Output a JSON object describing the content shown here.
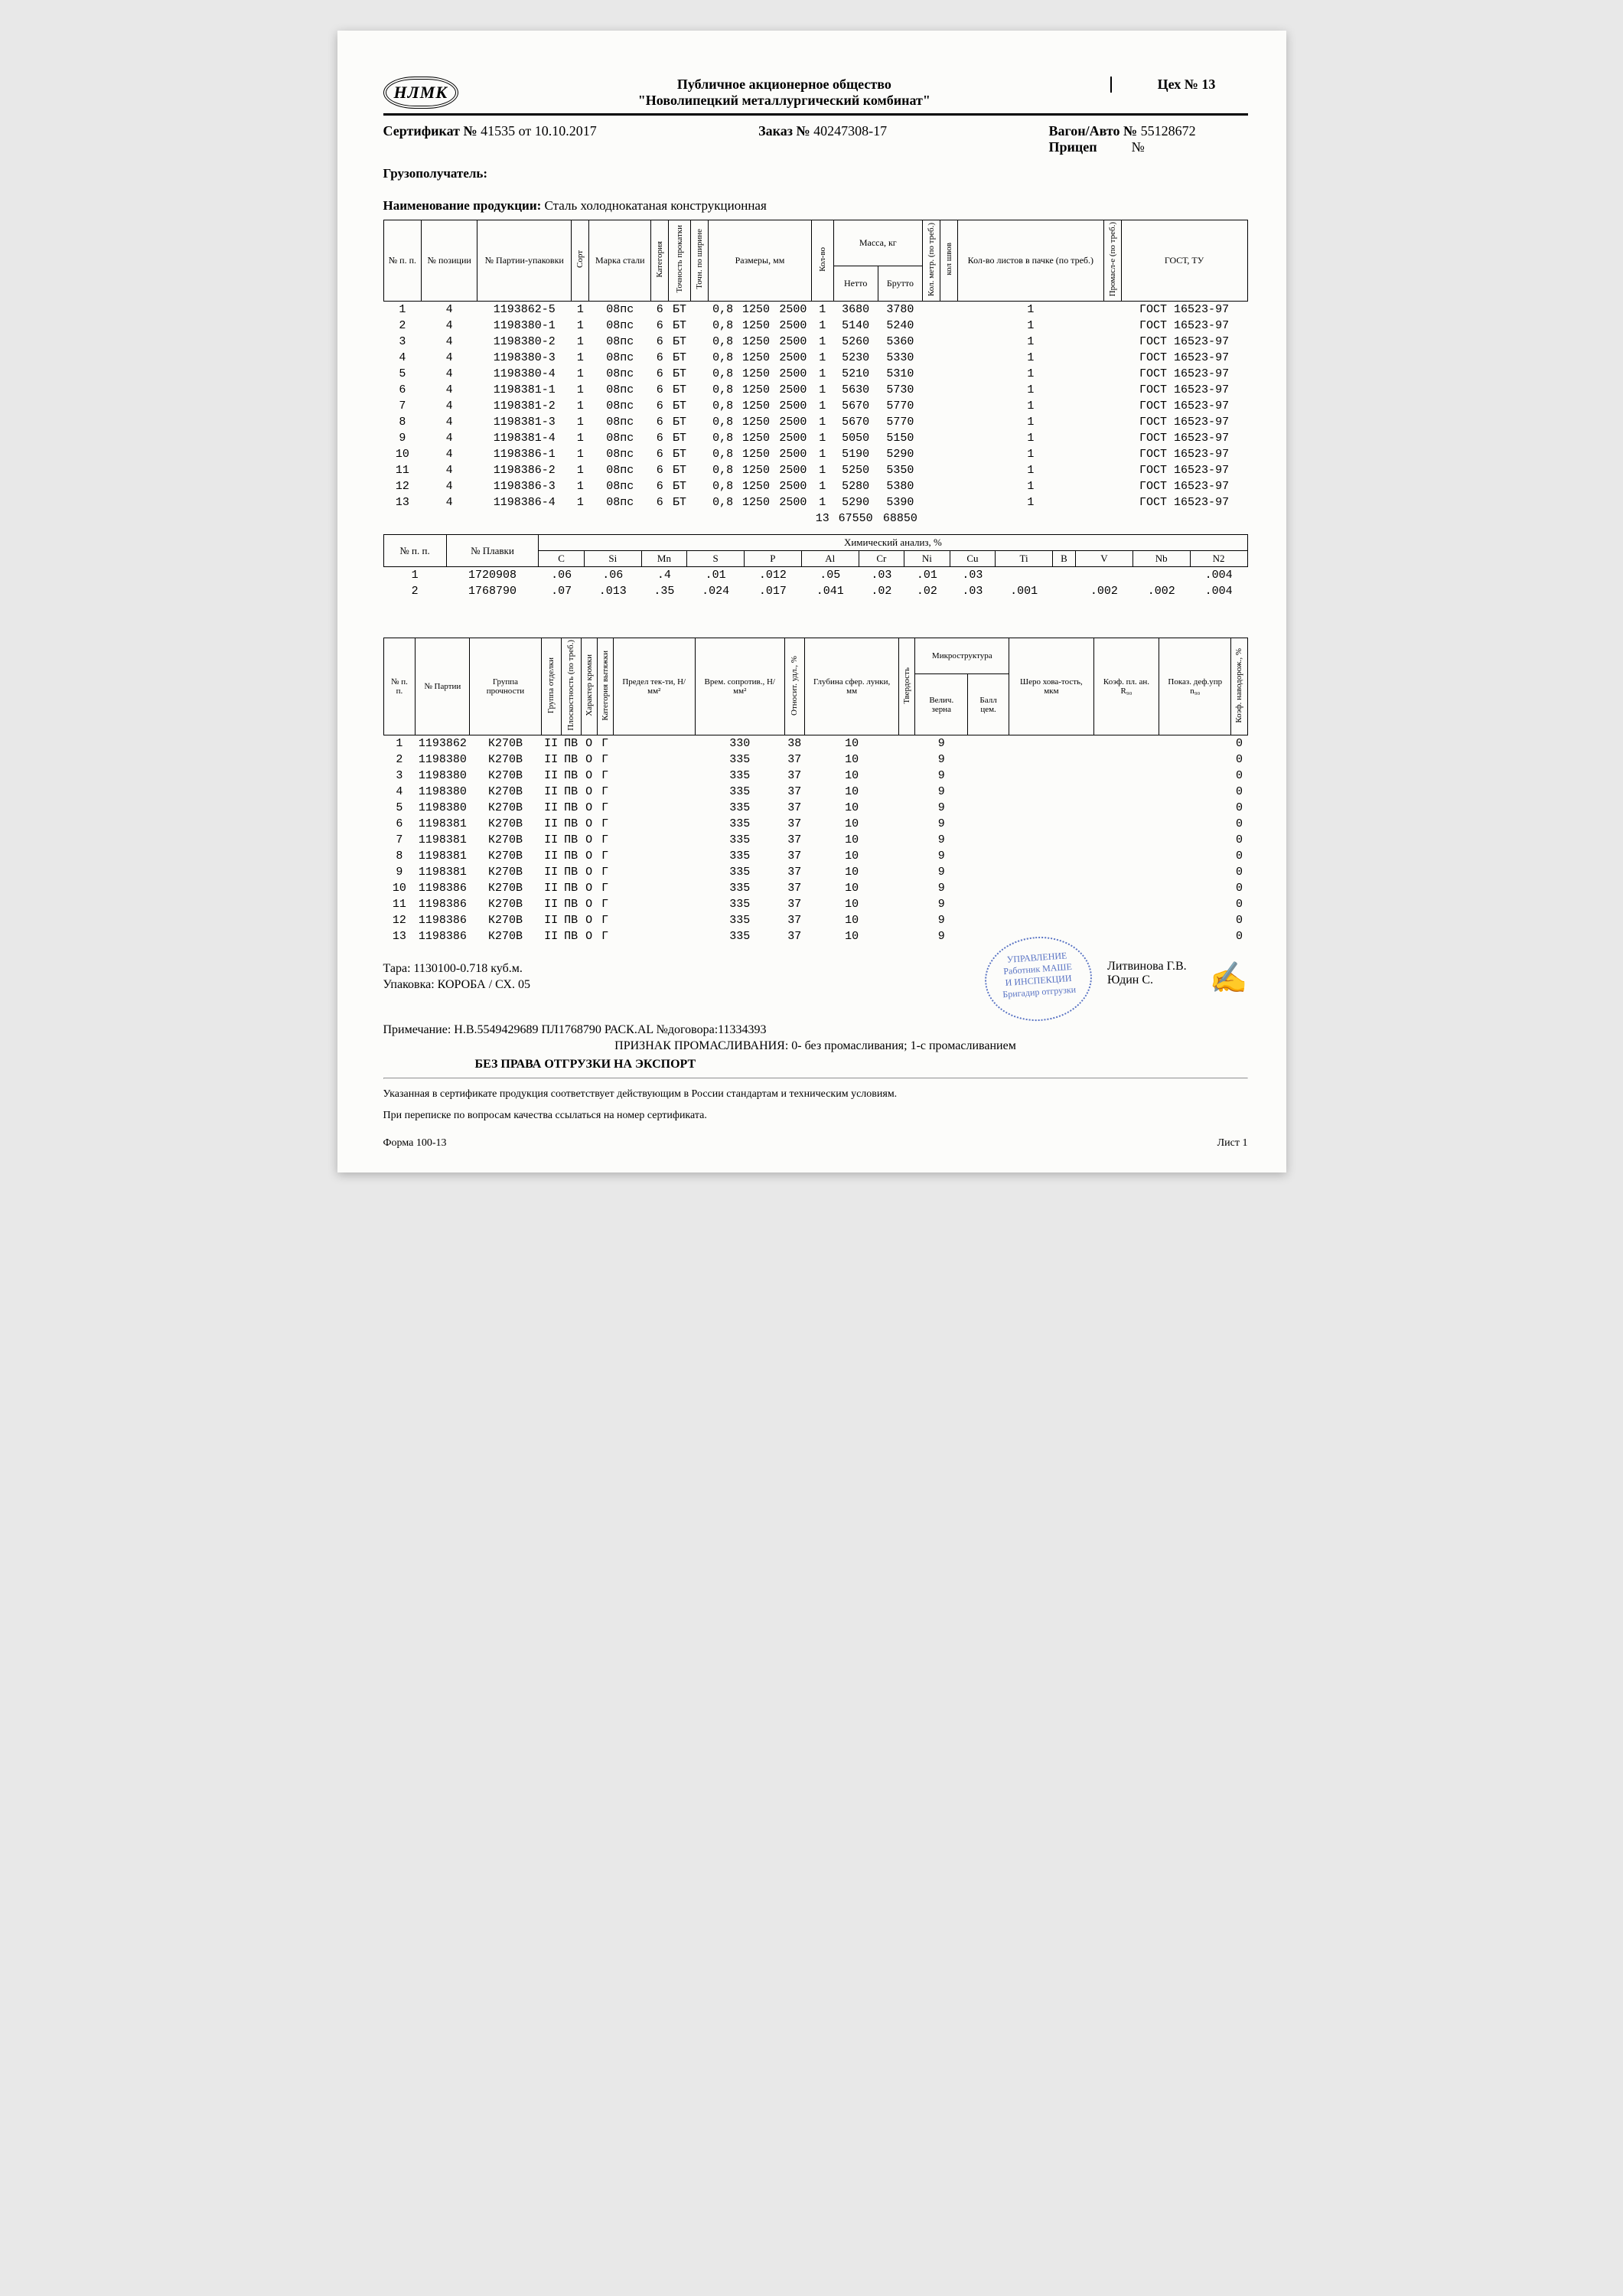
{
  "header": {
    "logo": "НЛМК",
    "company_l1": "Публичное акционерное общество",
    "company_l2": "\"Новолипецкий металлургический комбинат\"",
    "shop": "Цех № 13"
  },
  "cert": {
    "cert_label": "Сертификат №",
    "cert_no": "41535",
    "cert_date_label": "от",
    "cert_date": "10.10.2017",
    "order_label": "Заказ №",
    "order_no": "40247308-17",
    "wagon_label": "Вагон/Авто №",
    "wagon_no": "55128672",
    "trailer_label": "Прицеп",
    "trailer_no_label": "№"
  },
  "recipient_label": "Грузополучатель:",
  "product_label": "Наименование продукции:",
  "product_value": "Сталь холоднокатаная конструкционная",
  "t1_headers": {
    "npp": "№ п. п.",
    "pozi": "№ позиции",
    "partia": "№ Партии-упаковки",
    "sort": "Сорт",
    "marka": "Марка стали",
    "kategoria": "Категория",
    "tochnost": "Точность прокатки",
    "tochshir": "Точн. по ширине",
    "razmery": "Размеры, мм",
    "kolvo": "Кол-во",
    "massa": "Масса, кг",
    "netto": "Нетто",
    "brutto": "Брутто",
    "kolmetr": "Кол. метр. (по треб.)",
    "kolshov": "кол швов",
    "kollist": "Кол-во листов в пачке (по треб.)",
    "promasl": "Промасл-е (по треб.)",
    "gost": "ГОСТ, ТУ"
  },
  "t1_rows": [
    {
      "n": "1",
      "poz": "4",
      "part": "1193862-5",
      "sort": "1",
      "marka": "08пс",
      "kat": "6",
      "toch": "БТ",
      "tol": "0,8",
      "w": "1250",
      "l": "2500",
      "kv": "1",
      "net": "3680",
      "bru": "3780",
      "lists": "1",
      "gost": "ГОСТ 16523-97"
    },
    {
      "n": "2",
      "poz": "4",
      "part": "1198380-1",
      "sort": "1",
      "marka": "08пс",
      "kat": "6",
      "toch": "БТ",
      "tol": "0,8",
      "w": "1250",
      "l": "2500",
      "kv": "1",
      "net": "5140",
      "bru": "5240",
      "lists": "1",
      "gost": "ГОСТ 16523-97"
    },
    {
      "n": "3",
      "poz": "4",
      "part": "1198380-2",
      "sort": "1",
      "marka": "08пс",
      "kat": "6",
      "toch": "БТ",
      "tol": "0,8",
      "w": "1250",
      "l": "2500",
      "kv": "1",
      "net": "5260",
      "bru": "5360",
      "lists": "1",
      "gost": "ГОСТ 16523-97"
    },
    {
      "n": "4",
      "poz": "4",
      "part": "1198380-3",
      "sort": "1",
      "marka": "08пс",
      "kat": "6",
      "toch": "БТ",
      "tol": "0,8",
      "w": "1250",
      "l": "2500",
      "kv": "1",
      "net": "5230",
      "bru": "5330",
      "lists": "1",
      "gost": "ГОСТ 16523-97"
    },
    {
      "n": "5",
      "poz": "4",
      "part": "1198380-4",
      "sort": "1",
      "marka": "08пс",
      "kat": "6",
      "toch": "БТ",
      "tol": "0,8",
      "w": "1250",
      "l": "2500",
      "kv": "1",
      "net": "5210",
      "bru": "5310",
      "lists": "1",
      "gost": "ГОСТ 16523-97"
    },
    {
      "n": "6",
      "poz": "4",
      "part": "1198381-1",
      "sort": "1",
      "marka": "08пс",
      "kat": "6",
      "toch": "БТ",
      "tol": "0,8",
      "w": "1250",
      "l": "2500",
      "kv": "1",
      "net": "5630",
      "bru": "5730",
      "lists": "1",
      "gost": "ГОСТ 16523-97"
    },
    {
      "n": "7",
      "poz": "4",
      "part": "1198381-2",
      "sort": "1",
      "marka": "08пс",
      "kat": "6",
      "toch": "БТ",
      "tol": "0,8",
      "w": "1250",
      "l": "2500",
      "kv": "1",
      "net": "5670",
      "bru": "5770",
      "lists": "1",
      "gost": "ГОСТ 16523-97"
    },
    {
      "n": "8",
      "poz": "4",
      "part": "1198381-3",
      "sort": "1",
      "marka": "08пс",
      "kat": "6",
      "toch": "БТ",
      "tol": "0,8",
      "w": "1250",
      "l": "2500",
      "kv": "1",
      "net": "5670",
      "bru": "5770",
      "lists": "1",
      "gost": "ГОСТ 16523-97"
    },
    {
      "n": "9",
      "poz": "4",
      "part": "1198381-4",
      "sort": "1",
      "marka": "08пс",
      "kat": "6",
      "toch": "БТ",
      "tol": "0,8",
      "w": "1250",
      "l": "2500",
      "kv": "1",
      "net": "5050",
      "bru": "5150",
      "lists": "1",
      "gost": "ГОСТ 16523-97"
    },
    {
      "n": "10",
      "poz": "4",
      "part": "1198386-1",
      "sort": "1",
      "marka": "08пс",
      "kat": "6",
      "toch": "БТ",
      "tol": "0,8",
      "w": "1250",
      "l": "2500",
      "kv": "1",
      "net": "5190",
      "bru": "5290",
      "lists": "1",
      "gost": "ГОСТ 16523-97"
    },
    {
      "n": "11",
      "poz": "4",
      "part": "1198386-2",
      "sort": "1",
      "marka": "08пс",
      "kat": "6",
      "toch": "БТ",
      "tol": "0,8",
      "w": "1250",
      "l": "2500",
      "kv": "1",
      "net": "5250",
      "bru": "5350",
      "lists": "1",
      "gost": "ГОСТ 16523-97"
    },
    {
      "n": "12",
      "poz": "4",
      "part": "1198386-3",
      "sort": "1",
      "marka": "08пс",
      "kat": "6",
      "toch": "БТ",
      "tol": "0,8",
      "w": "1250",
      "l": "2500",
      "kv": "1",
      "net": "5280",
      "bru": "5380",
      "lists": "1",
      "gost": "ГОСТ 16523-97"
    },
    {
      "n": "13",
      "poz": "4",
      "part": "1198386-4",
      "sort": "1",
      "marka": "08пс",
      "kat": "6",
      "toch": "БТ",
      "tol": "0,8",
      "w": "1250",
      "l": "2500",
      "kv": "1",
      "net": "5290",
      "bru": "5390",
      "lists": "1",
      "gost": "ГОСТ 16523-97"
    }
  ],
  "t1_total": {
    "kv": "13",
    "net": "67550",
    "bru": "68850"
  },
  "t2_title": "Химический анализ, %",
  "t2_cols": [
    "№ п. п.",
    "№ Плавки",
    "C",
    "Si",
    "Mn",
    "S",
    "P",
    "Al",
    "Cr",
    "Ni",
    "Cu",
    "Ti",
    "B",
    "V",
    "Nb",
    "N2"
  ],
  "t2_rows": [
    {
      "n": "1",
      "plav": "1720908",
      "c": ".06",
      "si": ".06",
      "mn": ".4",
      "s": ".01",
      "p": ".012",
      "al": ".05",
      "cr": ".03",
      "ni": ".01",
      "cu": ".03",
      "ti": "",
      "b": "",
      "v": "",
      "nb": "",
      "n2": ".004"
    },
    {
      "n": "2",
      "plav": "1768790",
      "c": ".07",
      "si": ".013",
      "mn": ".35",
      "s": ".024",
      "p": ".017",
      "al": ".041",
      "cr": ".02",
      "ni": ".02",
      "cu": ".03",
      "ti": ".001",
      "b": "",
      "v": ".002",
      "nb": ".002",
      "n2": ".004"
    }
  ],
  "t3_cols": {
    "npp": "№ п. п.",
    "part": "№ Партии",
    "gruppa": "Группа прочности",
    "otdelka": "Группа отделки",
    "plosk": "Плоскостность (по треб.)",
    "kromki": "Характер кромки",
    "vytyazh": "Категория вытяжки",
    "predel": "Предел тек-ти, Н/мм²",
    "soprot": "Врем. сопротив., Н/мм²",
    "udl": "Относит. удл., %",
    "glub": "Глубина сфер. лунки, мм",
    "tverd": "Твердость",
    "micro": "Микроструктура",
    "velich": "Велич. зерна",
    "ball": "Балл цем.",
    "shero": "Шеро хова-тость, мкм",
    "koef": "Коэф. пл. ан. R₉₀",
    "pokaz": "Показ. деф.упр n₉₀",
    "koefnav": "Коэф. наводорож., %"
  },
  "t3_rows": [
    {
      "n": "1",
      "part": "1193862",
      "gr": "К270В",
      "ot": "II",
      "pl": "ПВ",
      "kr": "О",
      "vy": "Г",
      "pr": "",
      "so": "330",
      "ud": "38",
      "gl": "10",
      "tv": "",
      "ve": "9",
      "ba": "",
      "sh": "",
      "ko": "",
      "po": "",
      "kn": "0"
    },
    {
      "n": "2",
      "part": "1198380",
      "gr": "К270В",
      "ot": "II",
      "pl": "ПВ",
      "kr": "О",
      "vy": "Г",
      "pr": "",
      "so": "335",
      "ud": "37",
      "gl": "10",
      "tv": "",
      "ve": "9",
      "ba": "",
      "sh": "",
      "ko": "",
      "po": "",
      "kn": "0"
    },
    {
      "n": "3",
      "part": "1198380",
      "gr": "К270В",
      "ot": "II",
      "pl": "ПВ",
      "kr": "О",
      "vy": "Г",
      "pr": "",
      "so": "335",
      "ud": "37",
      "gl": "10",
      "tv": "",
      "ve": "9",
      "ba": "",
      "sh": "",
      "ko": "",
      "po": "",
      "kn": "0"
    },
    {
      "n": "4",
      "part": "1198380",
      "gr": "К270В",
      "ot": "II",
      "pl": "ПВ",
      "kr": "О",
      "vy": "Г",
      "pr": "",
      "so": "335",
      "ud": "37",
      "gl": "10",
      "tv": "",
      "ve": "9",
      "ba": "",
      "sh": "",
      "ko": "",
      "po": "",
      "kn": "0"
    },
    {
      "n": "5",
      "part": "1198380",
      "gr": "К270В",
      "ot": "II",
      "pl": "ПВ",
      "kr": "О",
      "vy": "Г",
      "pr": "",
      "so": "335",
      "ud": "37",
      "gl": "10",
      "tv": "",
      "ve": "9",
      "ba": "",
      "sh": "",
      "ko": "",
      "po": "",
      "kn": "0"
    },
    {
      "n": "6",
      "part": "1198381",
      "gr": "К270В",
      "ot": "II",
      "pl": "ПВ",
      "kr": "О",
      "vy": "Г",
      "pr": "",
      "so": "335",
      "ud": "37",
      "gl": "10",
      "tv": "",
      "ve": "9",
      "ba": "",
      "sh": "",
      "ko": "",
      "po": "",
      "kn": "0"
    },
    {
      "n": "7",
      "part": "1198381",
      "gr": "К270В",
      "ot": "II",
      "pl": "ПВ",
      "kr": "О",
      "vy": "Г",
      "pr": "",
      "so": "335",
      "ud": "37",
      "gl": "10",
      "tv": "",
      "ve": "9",
      "ba": "",
      "sh": "",
      "ko": "",
      "po": "",
      "kn": "0"
    },
    {
      "n": "8",
      "part": "1198381",
      "gr": "К270В",
      "ot": "II",
      "pl": "ПВ",
      "kr": "О",
      "vy": "Г",
      "pr": "",
      "so": "335",
      "ud": "37",
      "gl": "10",
      "tv": "",
      "ve": "9",
      "ba": "",
      "sh": "",
      "ko": "",
      "po": "",
      "kn": "0"
    },
    {
      "n": "9",
      "part": "1198381",
      "gr": "К270В",
      "ot": "II",
      "pl": "ПВ",
      "kr": "О",
      "vy": "Г",
      "pr": "",
      "so": "335",
      "ud": "37",
      "gl": "10",
      "tv": "",
      "ve": "9",
      "ba": "",
      "sh": "",
      "ko": "",
      "po": "",
      "kn": "0"
    },
    {
      "n": "10",
      "part": "1198386",
      "gr": "К270В",
      "ot": "II",
      "pl": "ПВ",
      "kr": "О",
      "vy": "Г",
      "pr": "",
      "so": "335",
      "ud": "37",
      "gl": "10",
      "tv": "",
      "ve": "9",
      "ba": "",
      "sh": "",
      "ko": "",
      "po": "",
      "kn": "0"
    },
    {
      "n": "11",
      "part": "1198386",
      "gr": "К270В",
      "ot": "II",
      "pl": "ПВ",
      "kr": "О",
      "vy": "Г",
      "pr": "",
      "so": "335",
      "ud": "37",
      "gl": "10",
      "tv": "",
      "ve": "9",
      "ba": "",
      "sh": "",
      "ko": "",
      "po": "",
      "kn": "0"
    },
    {
      "n": "12",
      "part": "1198386",
      "gr": "К270В",
      "ot": "II",
      "pl": "ПВ",
      "kr": "О",
      "vy": "Г",
      "pr": "",
      "so": "335",
      "ud": "37",
      "gl": "10",
      "tv": "",
      "ve": "9",
      "ba": "",
      "sh": "",
      "ko": "",
      "po": "",
      "kn": "0"
    },
    {
      "n": "13",
      "part": "1198386",
      "gr": "К270В",
      "ot": "II",
      "pl": "ПВ",
      "kr": "О",
      "vy": "Г",
      "pr": "",
      "so": "335",
      "ud": "37",
      "gl": "10",
      "tv": "",
      "ve": "9",
      "ba": "",
      "sh": "",
      "ko": "",
      "po": "",
      "kn": "0"
    }
  ],
  "footer": {
    "tara": "Тара: 1130100-0.718 куб.м.",
    "upak": "Упаковка: КОРОБА / СХ. 05",
    "prim": "Примечание:   Н.В.5549429689 ПЛ1768790 РАСК.AL №договора:11334393",
    "promasl": "ПРИЗНАК ПРОМАСЛИВАНИЯ: 0- без промасливания; 1-с промасливанием",
    "export": "БЕЗ ПРАВА ОТГРУЗКИ НА ЭКСПОРТ",
    "signer1_role": "Работник МАШЕ",
    "signer1_role2": "И ИНСПЕКЦИИ",
    "signer2_role": "Бригадир отгрузки",
    "signer1": "Литвинова Г.В.",
    "signer2": "Юдин С.",
    "stamp_top": "УПРАВЛЕНИЕ",
    "note1": "Указанная в сертификате продукция соответствует действующим в России стандартам и техническим условиям.",
    "note2": "При переписке по вопросам качества ссылаться на номер сертификата.",
    "form": "Форма 100-13",
    "list": "Лист 1"
  }
}
